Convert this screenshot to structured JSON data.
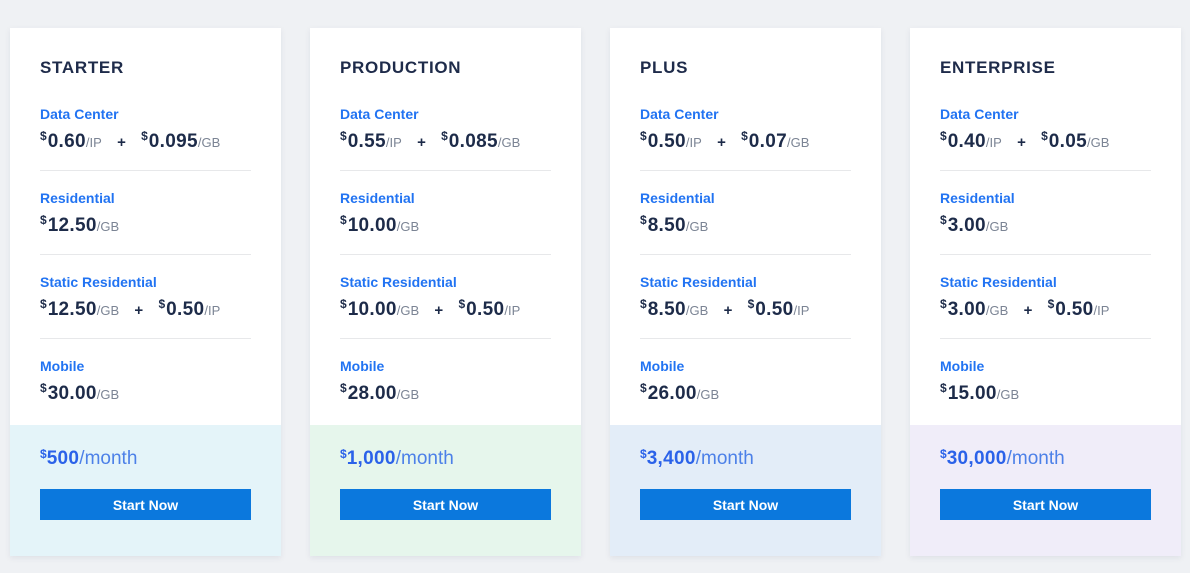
{
  "plus_sign": "+",
  "colors": {
    "accent_blue": "#2173f2",
    "title_navy": "#1e2b4a",
    "price_navy": "#1d2b49",
    "unit_gray": "#7b8494",
    "divider": "#e7e8ea",
    "footer_blue": "#2b62e9",
    "footer_suffix_blue": "#4c80e8",
    "button_blue": "#0b78dd",
    "button_text": "#ffffff",
    "page_bg": "#eff1f4"
  },
  "plans": [
    {
      "name": "STARTER",
      "footer_bg": "#e4f4f9",
      "sections": [
        {
          "label": "Data Center",
          "prices": [
            {
              "currency": "$",
              "amount": "0.60",
              "unit": "/IP"
            },
            {
              "currency": "$",
              "amount": "0.095",
              "unit": "/GB"
            }
          ]
        },
        {
          "label": "Residential",
          "prices": [
            {
              "currency": "$",
              "amount": "12.50",
              "unit": "/GB"
            }
          ]
        },
        {
          "label": "Static Residential",
          "prices": [
            {
              "currency": "$",
              "amount": "12.50",
              "unit": "/GB"
            },
            {
              "currency": "$",
              "amount": "0.50",
              "unit": "/IP"
            }
          ]
        },
        {
          "label": "Mobile",
          "prices": [
            {
              "currency": "$",
              "amount": "30.00",
              "unit": "/GB"
            }
          ]
        }
      ],
      "monthly": {
        "currency": "$",
        "amount": "500",
        "suffix": "/month"
      },
      "cta": "Start Now"
    },
    {
      "name": "PRODUCTION",
      "footer_bg": "#e6f6ec",
      "sections": [
        {
          "label": "Data Center",
          "prices": [
            {
              "currency": "$",
              "amount": "0.55",
              "unit": "/IP"
            },
            {
              "currency": "$",
              "amount": "0.085",
              "unit": "/GB"
            }
          ]
        },
        {
          "label": "Residential",
          "prices": [
            {
              "currency": "$",
              "amount": "10.00",
              "unit": "/GB"
            }
          ]
        },
        {
          "label": "Static Residential",
          "prices": [
            {
              "currency": "$",
              "amount": "10.00",
              "unit": "/GB"
            },
            {
              "currency": "$",
              "amount": "0.50",
              "unit": "/IP"
            }
          ]
        },
        {
          "label": "Mobile",
          "prices": [
            {
              "currency": "$",
              "amount": "28.00",
              "unit": "/GB"
            }
          ]
        }
      ],
      "monthly": {
        "currency": "$",
        "amount": "1,000",
        "suffix": "/month"
      },
      "cta": "Start Now"
    },
    {
      "name": "PLUS",
      "footer_bg": "#e3edf8",
      "sections": [
        {
          "label": "Data Center",
          "prices": [
            {
              "currency": "$",
              "amount": "0.50",
              "unit": "/IP"
            },
            {
              "currency": "$",
              "amount": "0.07",
              "unit": "/GB"
            }
          ]
        },
        {
          "label": "Residential",
          "prices": [
            {
              "currency": "$",
              "amount": "8.50",
              "unit": "/GB"
            }
          ]
        },
        {
          "label": "Static Residential",
          "prices": [
            {
              "currency": "$",
              "amount": "8.50",
              "unit": "/GB"
            },
            {
              "currency": "$",
              "amount": "0.50",
              "unit": "/IP"
            }
          ]
        },
        {
          "label": "Mobile",
          "prices": [
            {
              "currency": "$",
              "amount": "26.00",
              "unit": "/GB"
            }
          ]
        }
      ],
      "monthly": {
        "currency": "$",
        "amount": "3,400",
        "suffix": "/month"
      },
      "cta": "Start Now"
    },
    {
      "name": "ENTERPRISE",
      "footer_bg": "#f0edf9",
      "sections": [
        {
          "label": "Data Center",
          "prices": [
            {
              "currency": "$",
              "amount": "0.40",
              "unit": "/IP"
            },
            {
              "currency": "$",
              "amount": "0.05",
              "unit": "/GB"
            }
          ]
        },
        {
          "label": "Residential",
          "prices": [
            {
              "currency": "$",
              "amount": "3.00",
              "unit": "/GB"
            }
          ]
        },
        {
          "label": "Static Residential",
          "prices": [
            {
              "currency": "$",
              "amount": "3.00",
              "unit": "/GB"
            },
            {
              "currency": "$",
              "amount": "0.50",
              "unit": "/IP"
            }
          ]
        },
        {
          "label": "Mobile",
          "prices": [
            {
              "currency": "$",
              "amount": "15.00",
              "unit": "/GB"
            }
          ]
        }
      ],
      "monthly": {
        "currency": "$",
        "amount": "30,000",
        "suffix": "/month"
      },
      "cta": "Start Now"
    }
  ]
}
